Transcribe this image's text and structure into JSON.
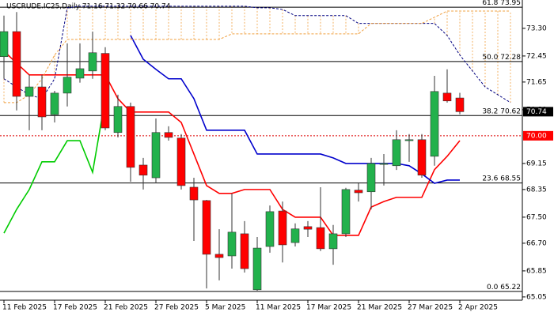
{
  "chart_data": {
    "type": "candlestick",
    "title": "USCRUDE.IC25,Daily  71.16 71.32 70.66 70.74",
    "categories": [
      "11 Feb 2025",
      null,
      null,
      null,
      "17 Feb 2025",
      null,
      null,
      null,
      "21 Feb 2025",
      null,
      null,
      null,
      "27 Feb 2025",
      null,
      null,
      null,
      "5 Mar 2025",
      null,
      null,
      null,
      "11 Mar 2025",
      null,
      null,
      null,
      "17 Mar 2025",
      null,
      null,
      null,
      "21 Mar 2025",
      null,
      null,
      null,
      "27 Mar 2025",
      null,
      null,
      null,
      "2 Apr 2025",
      null,
      null,
      null,
      null
    ],
    "open": [
      72.43,
      73.2,
      71.21,
      71.5,
      70.65,
      71.31,
      71.77,
      71.99,
      72.53,
      70.1,
      70.9,
      69.1,
      68.71,
      70.1,
      69.93,
      68.42,
      68.01,
      66.36,
      66.31,
      66.99,
      65.27,
      66.6,
      67.69,
      66.72,
      67.21,
      67.18,
      66.53,
      66.99,
      68.33,
      68.28,
      69.12,
      69.08,
      69.85,
      69.88,
      69.37,
      71.31,
      71.16,
      null,
      null,
      null,
      null
    ],
    "high": [
      73.69,
      73.8,
      71.87,
      71.87,
      71.38,
      72.84,
      72.84,
      73.2,
      72.72,
      71.26,
      71.02,
      69.32,
      70.53,
      70.29,
      70.05,
      68.71,
      68.03,
      67.13,
      68.23,
      67.38,
      66.89,
      67.86,
      67.98,
      67.31,
      67.38,
      68.42,
      67.26,
      68.4,
      68.54,
      69.32,
      69.44,
      70.17,
      70.05,
      70.05,
      71.84,
      72.04,
      71.32,
      null,
      null,
      null,
      null
    ],
    "low": [
      71.75,
      70.78,
      70.17,
      70.17,
      70.41,
      70.9,
      71.63,
      71.75,
      70.17,
      69.95,
      68.59,
      68.35,
      68.54,
      69.85,
      68.35,
      66.77,
      65.31,
      65.56,
      65.92,
      65.8,
      65.24,
      66.41,
      66.11,
      66.6,
      66.89,
      66.46,
      66.04,
      66.89,
      67.98,
      67.74,
      68.47,
      68.95,
      69.2,
      68.71,
      69.08,
      71.02,
      70.66,
      null,
      null,
      null,
      null
    ],
    "close": [
      73.2,
      71.21,
      71.5,
      70.58,
      71.31,
      71.8,
      72.06,
      72.55,
      70.24,
      70.9,
      69.03,
      68.79,
      70.1,
      69.95,
      68.47,
      68.03,
      66.36,
      66.26,
      67.04,
      65.92,
      66.55,
      67.67,
      66.65,
      67.14,
      67.13,
      66.53,
      66.99,
      68.35,
      68.25,
      69.15,
      69.15,
      69.88,
      69.88,
      68.79,
      71.36,
      71.07,
      70.74,
      null,
      null,
      null,
      null
    ],
    "up_color": "#22b14c",
    "down_color": "#ff0000",
    "lines": [
      {
        "color": "#ff0000",
        "dash": false,
        "values": [
          72.6,
          72.23,
          71.87,
          71.87,
          71.87,
          71.87,
          71.87,
          71.87,
          71.87,
          71.14,
          70.73,
          70.73,
          70.73,
          70.73,
          70.41,
          69.44,
          68.47,
          68.23,
          68.23,
          68.35,
          68.35,
          68.35,
          67.74,
          67.5,
          67.5,
          67.5,
          66.94,
          66.94,
          66.94,
          67.81,
          67.98,
          68.11,
          68.11,
          68.11,
          68.96,
          69.37,
          69.85,
          null,
          null,
          null,
          null
        ]
      },
      {
        "color": "#0000cc",
        "dash": false,
        "values": [
          null,
          null,
          null,
          null,
          null,
          null,
          null,
          null,
          null,
          null,
          73.08,
          72.35,
          72.04,
          71.75,
          71.75,
          71.14,
          70.17,
          70.17,
          70.17,
          70.17,
          69.44,
          69.44,
          69.44,
          69.44,
          69.44,
          69.44,
          69.32,
          69.15,
          69.15,
          69.15,
          69.15,
          69.15,
          69.08,
          68.83,
          68.54,
          68.64,
          68.64,
          null,
          null,
          null,
          null
        ]
      },
      {
        "color": "#00cc00",
        "dash": false,
        "values": [
          67.01,
          67.74,
          68.35,
          69.2,
          69.2,
          69.85,
          69.85,
          68.88,
          71.14,
          null,
          null,
          null,
          null,
          null,
          null,
          null,
          null,
          null,
          null,
          null,
          null,
          null,
          null,
          null,
          null,
          null,
          null,
          null,
          null,
          null,
          null,
          null,
          null,
          null,
          null,
          null,
          null,
          null,
          null,
          null,
          null
        ]
      },
      {
        "color": "#000080",
        "dash": true,
        "values": [
          71.75,
          71.5,
          71.26,
          71.14,
          71.75,
          73.93,
          73.98,
          73.98,
          73.98,
          73.98,
          73.98,
          73.98,
          73.98,
          73.98,
          73.98,
          73.98,
          73.98,
          73.98,
          73.98,
          73.98,
          73.93,
          73.93,
          73.88,
          73.69,
          73.69,
          73.69,
          73.69,
          73.69,
          73.45,
          73.45,
          73.45,
          73.45,
          73.45,
          73.45,
          73.45,
          73.08,
          72.48,
          71.99,
          71.5,
          71.26,
          71.02
        ]
      },
      {
        "color": "#f0a040",
        "dash": true,
        "values": [
          71.02,
          71.02,
          71.26,
          71.75,
          72.48,
          72.96,
          72.96,
          72.96,
          72.96,
          72.96,
          72.96,
          72.96,
          72.96,
          72.96,
          72.96,
          72.96,
          72.96,
          72.96,
          73.13,
          73.13,
          73.13,
          73.13,
          73.13,
          73.13,
          73.13,
          73.13,
          73.13,
          73.13,
          73.13,
          73.45,
          73.45,
          73.45,
          73.45,
          73.45,
          73.64,
          73.83,
          73.83,
          73.83,
          73.83,
          73.83,
          73.83
        ]
      }
    ],
    "fib_levels": [
      {
        "level": "61.8",
        "price": 73.95
      },
      {
        "level": "50.0",
        "price": 72.28
      },
      {
        "level": "38.2",
        "price": 70.62
      },
      {
        "level": "23.6",
        "price": 68.55
      },
      {
        "level": "0.0",
        "price": 65.22
      }
    ],
    "last_price": 70.74,
    "alert_level": {
      "value": 70,
      "label": "70.00"
    },
    "ylim": [
      64.95,
      74.17
    ],
    "yticks": [
      {
        "value": 73.3,
        "label": "73.30"
      },
      72.45,
      71.65,
      {
        "value": 70.8,
        "label": "70.80"
      },
      69.15,
      68.35,
      {
        "value": 67.5,
        "label": "67.50"
      },
      {
        "value": 66.7,
        "label": "66.70"
      },
      65.85,
      65.05
    ]
  }
}
